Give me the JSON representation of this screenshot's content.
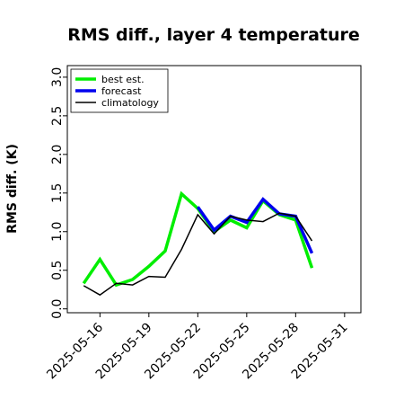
{
  "chart_data": {
    "type": "line",
    "title": "RMS diff., layer 4 temperature",
    "xlabel": "",
    "ylabel": "RMS diff. (K)",
    "x_start": "2025-05-14",
    "x_end": "2025-06-01",
    "ylim": [
      -0.05,
      3.15
    ],
    "yticks": [
      0.0,
      0.5,
      1.0,
      1.5,
      2.0,
      2.5,
      3.0
    ],
    "xticks": [
      {
        "date": "2025-05-16",
        "label": "2025-05-16",
        "color": "#000000"
      },
      {
        "date": "2025-05-19",
        "label": "2025-05-19",
        "color": "#000000"
      },
      {
        "date": "2025-05-22",
        "label": "2025-05-22",
        "color": "#228B22"
      },
      {
        "date": "2025-05-25",
        "label": "2025-05-25",
        "color": "#000000"
      },
      {
        "date": "2025-05-28",
        "label": "2025-05-28",
        "color": "#000000"
      },
      {
        "date": "2025-05-31",
        "label": "2025-05-31",
        "color": "#000000"
      }
    ],
    "grid": false,
    "legend_position": "top-left",
    "series": [
      {
        "name": "best est.",
        "color": "#00ee00",
        "width": 3.5,
        "points": [
          [
            "2025-05-15",
            0.33
          ],
          [
            "2025-05-16",
            0.64
          ],
          [
            "2025-05-17",
            0.31
          ],
          [
            "2025-05-18",
            0.38
          ],
          [
            "2025-05-19",
            0.55
          ],
          [
            "2025-05-20",
            0.75
          ],
          [
            "2025-05-21",
            1.49
          ],
          [
            "2025-05-22",
            1.3
          ],
          [
            "2025-05-23",
            1.0
          ],
          [
            "2025-05-24",
            1.15
          ],
          [
            "2025-05-25",
            1.05
          ],
          [
            "2025-05-26",
            1.4
          ],
          [
            "2025-05-27",
            1.22
          ],
          [
            "2025-05-28",
            1.15
          ],
          [
            "2025-05-29",
            0.53
          ]
        ]
      },
      {
        "name": "forecast",
        "color": "#0000ee",
        "width": 3.5,
        "points": [
          [
            "2025-05-22",
            1.32
          ],
          [
            "2025-05-23",
            1.02
          ],
          [
            "2025-05-24",
            1.2
          ],
          [
            "2025-05-25",
            1.12
          ],
          [
            "2025-05-26",
            1.42
          ],
          [
            "2025-05-27",
            1.23
          ],
          [
            "2025-05-28",
            1.2
          ],
          [
            "2025-05-29",
            0.72
          ]
        ]
      },
      {
        "name": "climatology",
        "color": "#000000",
        "width": 1.5,
        "points": [
          [
            "2025-05-15",
            0.3
          ],
          [
            "2025-05-16",
            0.18
          ],
          [
            "2025-05-17",
            0.33
          ],
          [
            "2025-05-18",
            0.31
          ],
          [
            "2025-05-19",
            0.42
          ],
          [
            "2025-05-20",
            0.41
          ],
          [
            "2025-05-21",
            0.77
          ],
          [
            "2025-05-22",
            1.22
          ],
          [
            "2025-05-23",
            0.97
          ],
          [
            "2025-05-24",
            1.2
          ],
          [
            "2025-05-25",
            1.15
          ],
          [
            "2025-05-26",
            1.13
          ],
          [
            "2025-05-27",
            1.24
          ],
          [
            "2025-05-28",
            1.2
          ],
          [
            "2025-05-29",
            0.88
          ]
        ]
      }
    ]
  }
}
